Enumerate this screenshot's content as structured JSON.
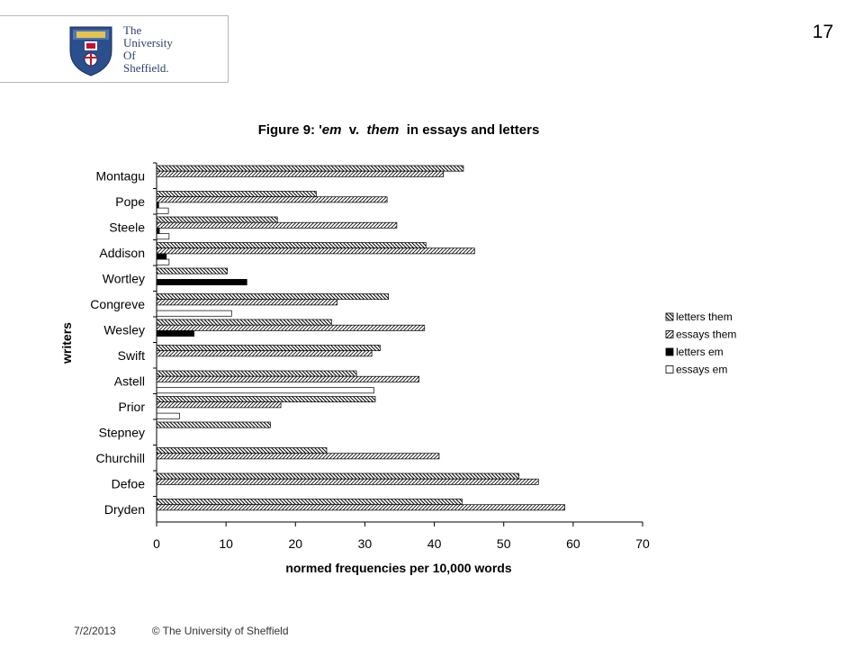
{
  "header": {
    "logo_lines": [
      "The",
      "University",
      "Of",
      "Sheffield."
    ],
    "slide_number": "17"
  },
  "footer": {
    "date": "7/2/2013",
    "copyright": "© The University of Sheffield"
  },
  "colors": {
    "accent": "#2b3f6b",
    "bar_stroke": "#000000"
  },
  "chart_data": {
    "type": "bar",
    "orientation": "horizontal",
    "title_parts": [
      {
        "text": "Figure 9: '",
        "italic": false
      },
      {
        "text": "em",
        "italic": true
      },
      {
        "text": "  v.  ",
        "italic": false
      },
      {
        "text": "them",
        "italic": true
      },
      {
        "text": "  in essays and letters",
        "italic": false
      }
    ],
    "xlabel": "normed frequencies per 10,000 words",
    "ylabel": "writers",
    "xlim": [
      0,
      70
    ],
    "xticks": [
      0,
      10,
      20,
      30,
      40,
      50,
      60,
      70
    ],
    "grid": false,
    "legend_position": "right",
    "categories": [
      "Montagu",
      "Pope",
      "Steele",
      "Addison",
      "Wortley",
      "Congreve",
      "Wesley",
      "Swift",
      "Astell",
      "Prior",
      "Stepney",
      "Churchill",
      "Defoe",
      "Dryden"
    ],
    "series": [
      {
        "name": "letters them",
        "pattern": "back-hatch",
        "values": [
          44.2,
          23.0,
          17.4,
          38.8,
          10.2,
          33.4,
          25.2,
          32.2,
          28.8,
          31.5,
          16.4,
          24.5,
          52.2,
          44.0
        ]
      },
      {
        "name": "essays them",
        "pattern": "forward-hatch",
        "values": [
          41.3,
          33.2,
          34.6,
          45.8,
          0,
          26.0,
          38.6,
          31.0,
          37.8,
          17.9,
          0,
          40.7,
          55.0,
          58.8
        ]
      },
      {
        "name": "letters em",
        "pattern": "solid-black",
        "values": [
          0,
          0.3,
          0.4,
          1.4,
          13.0,
          0,
          5.4,
          0,
          0,
          0,
          0,
          0,
          0,
          0
        ]
      },
      {
        "name": "essays em",
        "pattern": "white",
        "values": [
          0,
          1.7,
          1.8,
          1.8,
          0,
          10.8,
          0,
          0,
          31.3,
          3.3,
          0,
          0,
          0,
          0
        ]
      }
    ]
  }
}
